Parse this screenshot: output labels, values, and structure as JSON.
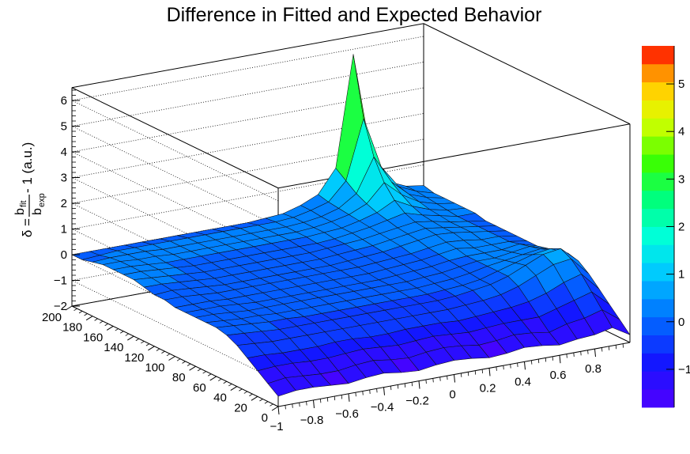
{
  "chart_data": {
    "type": "surface3d",
    "title": "Difference in Fitted and Expected Behavior",
    "zlabel": {
      "prefix": "δ = ",
      "numerator": "b",
      "numerator_sub": "fit",
      "denominator": "b",
      "denominator_sub": "exp",
      "suffix": " - 1 (a.u.)"
    },
    "x_range": [
      -1,
      1
    ],
    "x_ticks": [
      "−1",
      "−0.8",
      "−0.6",
      "−0.4",
      "−0.2",
      "0",
      "0.2",
      "0.4",
      "0.6",
      "0.8"
    ],
    "y_range": [
      0,
      200
    ],
    "y_ticks": [
      "0",
      "20",
      "40",
      "60",
      "80",
      "100",
      "120",
      "140",
      "160",
      "180",
      "200"
    ],
    "z_range": [
      -2,
      6.5
    ],
    "z_ticks": [
      "−2",
      "−1",
      "0",
      "1",
      "2",
      "3",
      "4",
      "5",
      "6"
    ],
    "grid": true,
    "palette_ticks": [
      "−1",
      "0",
      "1",
      "2",
      "3",
      "4",
      "5"
    ],
    "palette_range": [
      -1.8,
      5.8
    ],
    "surface_grid": {
      "x": [
        -1,
        -0.9,
        -0.8,
        -0.7,
        -0.6,
        -0.5,
        -0.4,
        -0.3,
        -0.2,
        -0.1,
        0,
        0.1,
        0.2,
        0.3,
        0.4,
        0.5,
        0.6,
        0.7,
        0.8,
        0.9,
        1
      ],
      "y": [
        0,
        10,
        20,
        30,
        40,
        50,
        60,
        70,
        80,
        90,
        100,
        110,
        120,
        130,
        140,
        150,
        160,
        170,
        180,
        190,
        200
      ],
      "z_rows_by_y": [
        [
          -1.6,
          -1.5,
          -1.5,
          -1.55,
          -1.6,
          -1.5,
          -1.45,
          -1.55,
          -1.6,
          -1.5,
          -1.45,
          -1.5,
          -1.6,
          -1.55,
          -1.45,
          -1.5,
          -1.6,
          -1.5,
          -1.45,
          -1.3,
          -1.7
        ],
        [
          -1.3,
          -1.2,
          -1.25,
          -1.3,
          -1.3,
          -1.2,
          -1.15,
          -1.25,
          -1.3,
          -1.2,
          -1.15,
          -1.2,
          -1.3,
          -1.25,
          -1.15,
          -1.2,
          -1.3,
          -1.1,
          -1.0,
          -0.8,
          -1.3
        ],
        [
          -1.0,
          -0.95,
          -0.95,
          -1.0,
          -1.0,
          -0.95,
          -0.9,
          -0.95,
          -1.0,
          -0.95,
          -0.9,
          -0.95,
          -1.0,
          -0.95,
          -0.9,
          -0.9,
          -0.9,
          -0.7,
          -0.5,
          -0.3,
          -0.9
        ],
        [
          -0.7,
          -0.7,
          -0.75,
          -0.75,
          -0.75,
          -0.7,
          -0.7,
          -0.75,
          -0.75,
          -0.7,
          -0.7,
          -0.7,
          -0.75,
          -0.7,
          -0.65,
          -0.6,
          -0.5,
          -0.3,
          0.0,
          0.2,
          -0.5
        ],
        [
          -0.4,
          -0.45,
          -0.5,
          -0.5,
          -0.5,
          -0.5,
          -0.5,
          -0.5,
          -0.5,
          -0.5,
          -0.5,
          -0.5,
          -0.5,
          -0.45,
          -0.4,
          -0.3,
          -0.1,
          0.2,
          0.5,
          0.6,
          -0.1
        ],
        [
          -0.2,
          -0.25,
          -0.3,
          -0.35,
          -0.35,
          -0.35,
          -0.35,
          -0.35,
          -0.35,
          -0.35,
          -0.35,
          -0.35,
          -0.35,
          -0.3,
          -0.2,
          -0.1,
          0.1,
          0.4,
          0.7,
          0.8,
          0.2
        ],
        [
          -0.1,
          -0.15,
          -0.2,
          -0.25,
          -0.25,
          -0.3,
          -0.3,
          -0.3,
          -0.3,
          -0.3,
          -0.3,
          -0.3,
          -0.3,
          -0.25,
          -0.2,
          -0.1,
          0.1,
          0.3,
          0.5,
          0.6,
          0.3
        ],
        [
          -0.1,
          -0.15,
          -0.2,
          -0.2,
          -0.25,
          -0.25,
          -0.25,
          -0.25,
          -0.25,
          -0.25,
          -0.25,
          -0.25,
          -0.25,
          -0.2,
          -0.15,
          -0.05,
          0.1,
          0.2,
          0.3,
          0.4,
          0.2
        ],
        [
          -0.1,
          -0.1,
          -0.15,
          -0.2,
          -0.2,
          -0.2,
          -0.2,
          -0.2,
          -0.2,
          -0.2,
          -0.2,
          -0.2,
          -0.2,
          -0.15,
          -0.1,
          0.0,
          0.1,
          0.1,
          0.2,
          0.3,
          0.1
        ],
        [
          -0.1,
          -0.1,
          -0.1,
          -0.15,
          -0.2,
          -0.2,
          -0.2,
          -0.2,
          -0.2,
          -0.2,
          -0.2,
          -0.2,
          -0.15,
          -0.1,
          -0.05,
          0.05,
          0.1,
          0.1,
          0.1,
          0.2,
          0.0
        ],
        [
          -0.1,
          -0.1,
          -0.1,
          -0.15,
          -0.15,
          -0.15,
          -0.15,
          -0.15,
          -0.15,
          -0.15,
          -0.15,
          -0.15,
          -0.1,
          -0.05,
          0.0,
          0.1,
          0.2,
          0.1,
          0.1,
          0.1,
          0.0
        ],
        [
          0.0,
          0.0,
          -0.05,
          -0.1,
          -0.1,
          -0.1,
          -0.1,
          -0.1,
          -0.1,
          -0.1,
          -0.1,
          -0.1,
          -0.05,
          0.0,
          0.05,
          0.15,
          0.25,
          0.2,
          0.1,
          0.1,
          0.0
        ],
        [
          0.0,
          0.05,
          0.0,
          -0.05,
          -0.1,
          -0.1,
          -0.1,
          -0.1,
          -0.1,
          -0.1,
          -0.1,
          -0.05,
          0.0,
          0.05,
          0.15,
          0.25,
          0.35,
          0.3,
          0.2,
          0.1,
          0.0
        ],
        [
          0.1,
          0.1,
          0.05,
          0.0,
          -0.05,
          -0.05,
          -0.05,
          -0.05,
          -0.05,
          -0.05,
          -0.05,
          0.0,
          0.05,
          0.1,
          0.2,
          0.3,
          0.4,
          0.3,
          0.2,
          0.1,
          0.0
        ],
        [
          0.2,
          0.15,
          0.1,
          0.05,
          0.0,
          0.0,
          0.0,
          0.0,
          0.0,
          0.0,
          0.0,
          0.05,
          0.1,
          0.15,
          0.25,
          0.35,
          0.45,
          0.35,
          0.2,
          0.1,
          0.0
        ],
        [
          0.2,
          0.2,
          0.15,
          0.1,
          0.05,
          0.05,
          0.05,
          0.05,
          0.05,
          0.05,
          0.05,
          0.05,
          0.1,
          0.2,
          0.3,
          0.45,
          0.6,
          0.4,
          0.25,
          0.1,
          0.1
        ],
        [
          0.2,
          0.2,
          0.15,
          0.1,
          0.1,
          0.1,
          0.1,
          0.1,
          0.1,
          0.1,
          0.1,
          0.1,
          0.15,
          0.2,
          0.35,
          0.55,
          0.9,
          0.55,
          0.3,
          0.15,
          0.1
        ],
        [
          0.2,
          0.2,
          0.15,
          0.15,
          0.1,
          0.1,
          0.1,
          0.1,
          0.1,
          0.1,
          0.1,
          0.1,
          0.15,
          0.25,
          0.4,
          0.7,
          1.4,
          0.8,
          0.4,
          0.2,
          0.1
        ],
        [
          0.1,
          0.15,
          0.15,
          0.15,
          0.1,
          0.1,
          0.1,
          0.1,
          0.1,
          0.1,
          0.1,
          0.1,
          0.15,
          0.25,
          0.45,
          0.9,
          2.2,
          1.1,
          0.5,
          0.25,
          0.1
        ],
        [
          0.0,
          0.05,
          0.1,
          0.1,
          0.1,
          0.1,
          0.1,
          0.1,
          0.1,
          0.1,
          0.1,
          0.1,
          0.15,
          0.3,
          0.5,
          1.2,
          3.5,
          1.5,
          0.6,
          0.3,
          0.1
        ],
        [
          0.0,
          0.0,
          0.0,
          0.0,
          0.0,
          0.0,
          0.0,
          0.0,
          0.0,
          0.0,
          0.0,
          0.05,
          0.1,
          0.3,
          0.6,
          1.5,
          5.8,
          1.8,
          0.6,
          0.3,
          0.2
        ]
      ]
    }
  }
}
